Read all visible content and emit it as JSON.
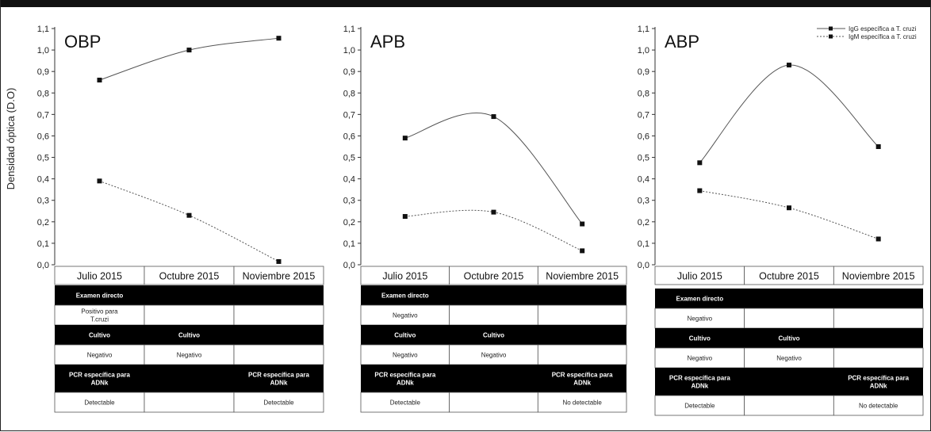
{
  "chart_data": [
    {
      "type": "line",
      "title": "OBP",
      "ylabel": "Densidad óptica (D.O)",
      "categories": [
        "Julio 2015",
        "Octubre 2015",
        "Noviembre 2015"
      ],
      "ylim": [
        0.0,
        1.1
      ],
      "yticks": [
        "0,0",
        "0,1",
        "0,2",
        "0,3",
        "0,4",
        "0,5",
        "0,6",
        "0,7",
        "0,8",
        "0,9",
        "1,0",
        "1,1"
      ],
      "series": [
        {
          "values": [
            0.86,
            1.0,
            1.055
          ],
          "color": "#555555",
          "dash": "solid"
        },
        {
          "values": [
            0.39,
            0.23,
            0.015
          ],
          "color": "#555555",
          "dash": "dotted"
        }
      ],
      "table": [
        {
          "kind": "black",
          "cells": [
            "Examen directo",
            "",
            ""
          ]
        },
        {
          "kind": "white",
          "cells": [
            "Positivo para T.cruzi",
            "",
            ""
          ]
        },
        {
          "kind": "black",
          "cells": [
            "Cultivo",
            "Cultivo",
            ""
          ]
        },
        {
          "kind": "white",
          "cells": [
            "Negativo",
            "Negativo",
            ""
          ]
        },
        {
          "kind": "black",
          "cells": [
            "PCR específica para ADNk",
            "",
            "PCR específica para ADNk"
          ]
        },
        {
          "kind": "white",
          "cells": [
            "Detectable",
            "",
            "Detectable"
          ]
        }
      ]
    },
    {
      "type": "line",
      "title": "APB",
      "categories": [
        "Julio 2015",
        "Octubre 2015",
        "Noviembre 2015"
      ],
      "ylim": [
        0.0,
        1.1
      ],
      "yticks": [
        "0,0",
        "0,1",
        "0,2",
        "0,3",
        "0,4",
        "0,5",
        "0,6",
        "0,7",
        "0,8",
        "0,9",
        "1,0",
        "1,1"
      ],
      "series": [
        {
          "values": [
            0.59,
            0.69,
            0.19
          ],
          "color": "#555555",
          "dash": "solid"
        },
        {
          "values": [
            0.225,
            0.245,
            0.065
          ],
          "color": "#555555",
          "dash": "dotted"
        }
      ],
      "table": [
        {
          "kind": "black",
          "cells": [
            "Examen directo",
            "",
            ""
          ]
        },
        {
          "kind": "white",
          "cells": [
            "Negativo",
            "",
            ""
          ]
        },
        {
          "kind": "black",
          "cells": [
            "Cultivo",
            "Cultivo",
            ""
          ]
        },
        {
          "kind": "white",
          "cells": [
            "Negativo",
            "Negativo",
            ""
          ]
        },
        {
          "kind": "black",
          "cells": [
            "PCR específica para ADNk",
            "",
            "PCR específica para ADNk"
          ]
        },
        {
          "kind": "white",
          "cells": [
            "Detectable",
            "",
            "No detectable"
          ]
        }
      ]
    },
    {
      "type": "line",
      "title": "ABP",
      "categories": [
        "Julio 2015",
        "Octubre 2015",
        "Noviembre 2015"
      ],
      "ylim": [
        0.0,
        1.1
      ],
      "yticks": [
        "0,0",
        "0,1",
        "0,2",
        "0,3",
        "0,4",
        "0,5",
        "0,6",
        "0,7",
        "0,8",
        "0,9",
        "1,0",
        "1,1"
      ],
      "legend": {
        "position": "top-right",
        "entries": [
          "IgG específica a T. cruzi",
          "IgM específica a T. cruzi"
        ]
      },
      "series": [
        {
          "values": [
            0.475,
            0.93,
            0.55
          ],
          "color": "#555555",
          "dash": "solid"
        },
        {
          "values": [
            0.345,
            0.265,
            0.12
          ],
          "color": "#555555",
          "dash": "dotted"
        }
      ],
      "table": [
        {
          "kind": "black",
          "cells": [
            "Examen directo",
            "",
            ""
          ]
        },
        {
          "kind": "white",
          "cells": [
            "Negativo",
            "",
            ""
          ]
        },
        {
          "kind": "black",
          "cells": [
            "Cultivo",
            "Cultivo",
            ""
          ]
        },
        {
          "kind": "white",
          "cells": [
            "Negativo",
            "Negativo",
            ""
          ]
        },
        {
          "kind": "black",
          "cells": [
            "PCR específica para ADNk",
            "",
            "PCR específica para ADNk"
          ]
        },
        {
          "kind": "white",
          "cells": [
            "Detectable",
            "",
            "No detectable"
          ]
        }
      ]
    }
  ]
}
